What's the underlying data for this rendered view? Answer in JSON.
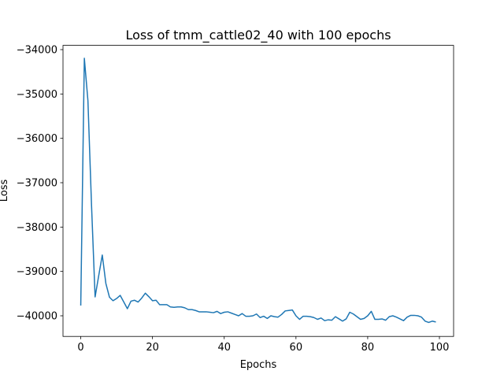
{
  "chart_data": {
    "type": "line",
    "title": "Loss of tmm_cattle02_40 with 100 epochs",
    "x_label": "Epochs",
    "y_label": "Loss",
    "x": [
      0,
      1,
      2,
      3,
      4,
      5,
      6,
      7,
      8,
      9,
      10,
      11,
      12,
      13,
      14,
      15,
      16,
      17,
      18,
      19,
      20,
      21,
      22,
      23,
      24,
      25,
      26,
      27,
      28,
      29,
      30,
      31,
      32,
      33,
      34,
      35,
      36,
      37,
      38,
      39,
      40,
      41,
      42,
      43,
      44,
      45,
      46,
      47,
      48,
      49,
      50,
      51,
      52,
      53,
      54,
      55,
      56,
      57,
      58,
      59,
      60,
      61,
      62,
      63,
      64,
      65,
      66,
      67,
      68,
      69,
      70,
      71,
      72,
      73,
      74,
      75,
      76,
      77,
      78,
      79,
      80,
      81,
      82,
      83,
      84,
      85,
      86,
      87,
      88,
      89,
      90,
      91,
      92,
      93,
      94,
      95,
      96,
      97,
      98,
      99
    ],
    "series": [
      {
        "name": "loss",
        "color": "#1f77b4",
        "values": [
          -39770,
          -34195,
          -35150,
          -37500,
          -39575,
          -39100,
          -38630,
          -39270,
          -39580,
          -39660,
          -39610,
          -39540,
          -39690,
          -39840,
          -39670,
          -39650,
          -39690,
          -39600,
          -39490,
          -39570,
          -39660,
          -39650,
          -39750,
          -39750,
          -39750,
          -39800,
          -39810,
          -39800,
          -39800,
          -39820,
          -39860,
          -39860,
          -39880,
          -39910,
          -39910,
          -39910,
          -39920,
          -39930,
          -39900,
          -39950,
          -39920,
          -39910,
          -39940,
          -39970,
          -40000,
          -39950,
          -40010,
          -40010,
          -40000,
          -39960,
          -40040,
          -40010,
          -40060,
          -40000,
          -40020,
          -40030,
          -39970,
          -39890,
          -39880,
          -39870,
          -40000,
          -40080,
          -40010,
          -40010,
          -40020,
          -40040,
          -40080,
          -40050,
          -40110,
          -40090,
          -40100,
          -40020,
          -40070,
          -40120,
          -40070,
          -39920,
          -39960,
          -40020,
          -40080,
          -40060,
          -40000,
          -39900,
          -40080,
          -40080,
          -40070,
          -40100,
          -40020,
          -40000,
          -40030,
          -40070,
          -40110,
          -40030,
          -39990,
          -39990,
          -40000,
          -40030,
          -40120,
          -40150,
          -40120,
          -40140
        ]
      }
    ],
    "xlim": [
      -4.95,
      103.95
    ],
    "ylim": [
      -40465,
      -33904
    ],
    "xticks": [
      0,
      20,
      40,
      60,
      80,
      100
    ],
    "yticks": [
      {
        "value": -40000,
        "label": "−40000"
      },
      {
        "value": -39000,
        "label": "−39000"
      },
      {
        "value": -38000,
        "label": "−38000"
      },
      {
        "value": -37000,
        "label": "−37000"
      },
      {
        "value": -36000,
        "label": "−36000"
      },
      {
        "value": -35000,
        "label": "−35000"
      },
      {
        "value": -34000,
        "label": "−34000"
      }
    ],
    "grid": false
  }
}
